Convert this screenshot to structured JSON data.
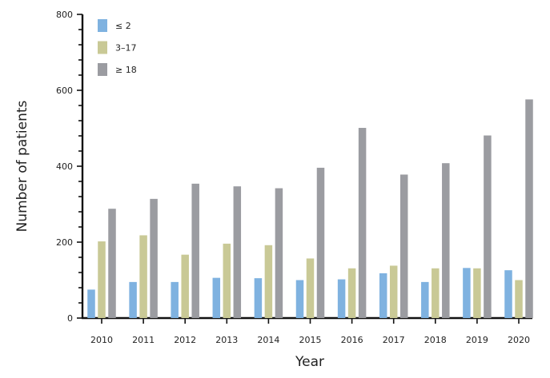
{
  "chart_data": {
    "type": "bar",
    "title": "",
    "xlabel": "Year",
    "ylabel": "Number of patients",
    "ylim": [
      0,
      800
    ],
    "yticks": [
      0,
      200,
      400,
      600,
      800
    ],
    "grid": false,
    "legend_position": "top-left",
    "categories": [
      "2010",
      "2011",
      "2012",
      "2013",
      "2014",
      "2015",
      "2016",
      "2017",
      "2018",
      "2019",
      "2020"
    ],
    "series": [
      {
        "name": "≤ 2",
        "color": "#7fb2e0",
        "values": [
          75,
          95,
          95,
          106,
          105,
          100,
          102,
          118,
          95,
          132,
          126
        ]
      },
      {
        "name": "3–17",
        "color": "#c9c996",
        "values": [
          202,
          218,
          167,
          196,
          192,
          157,
          131,
          138,
          131,
          131,
          100
        ]
      },
      {
        "name": "≥ 18",
        "color": "#9b9ca1",
        "values": [
          288,
          314,
          354,
          347,
          342,
          396,
          501,
          378,
          408,
          481,
          576
        ]
      }
    ]
  }
}
